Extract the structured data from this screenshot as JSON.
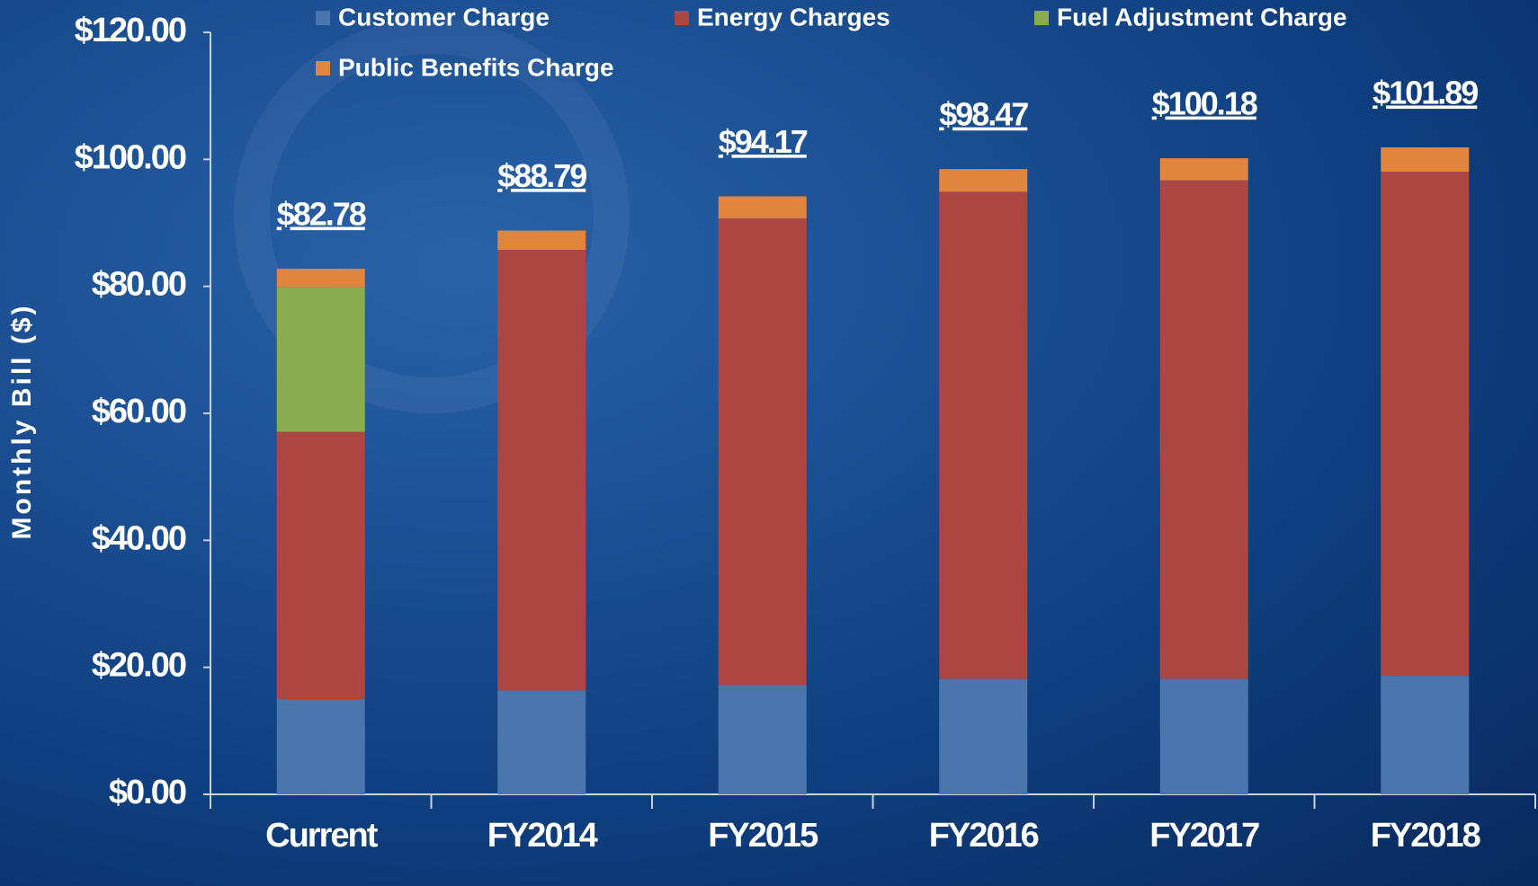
{
  "chart_data": {
    "type": "stacked_bar",
    "y_label": "Monthly Bill ($)",
    "categories": [
      "Current",
      "FY2014",
      "FY2015",
      "FY2016",
      "FY2017",
      "FY2018"
    ],
    "series": [
      {
        "name": "Customer Charge",
        "color": "#4a76ad",
        "values": [
          15.0,
          16.35,
          17.28,
          18.2,
          18.2,
          18.66
        ]
      },
      {
        "name": "Energy Charges",
        "color": "#ab4642",
        "values": [
          42.1,
          69.4,
          73.4,
          76.7,
          78.5,
          79.4
        ]
      },
      {
        "name": "Fuel Adjustment Charge",
        "color": "#8aab4f",
        "values": [
          22.8,
          0,
          0,
          0,
          0,
          0
        ]
      },
      {
        "name": "Public Benefits Charge",
        "color": "#e0843e",
        "values": [
          2.88,
          3.04,
          3.49,
          3.57,
          3.48,
          3.83
        ]
      }
    ],
    "totals": [
      82.78,
      88.79,
      94.17,
      98.47,
      100.18,
      101.89
    ],
    "total_labels": [
      "$82.78",
      "$88.79",
      "$94.17",
      "$98.47",
      "$100.18",
      "$101.89"
    ],
    "ylim": [
      0,
      120
    ],
    "yticks": [
      {
        "value": 0,
        "label": "$0.00"
      },
      {
        "value": 20,
        "label": "$20.00"
      },
      {
        "value": 40,
        "label": "$40.00"
      },
      {
        "value": 60,
        "label": "$60.00"
      },
      {
        "value": 80,
        "label": "$80.00"
      },
      {
        "value": 100,
        "label": "$100.00"
      },
      {
        "value": 120,
        "label": "$120.00"
      }
    ]
  }
}
